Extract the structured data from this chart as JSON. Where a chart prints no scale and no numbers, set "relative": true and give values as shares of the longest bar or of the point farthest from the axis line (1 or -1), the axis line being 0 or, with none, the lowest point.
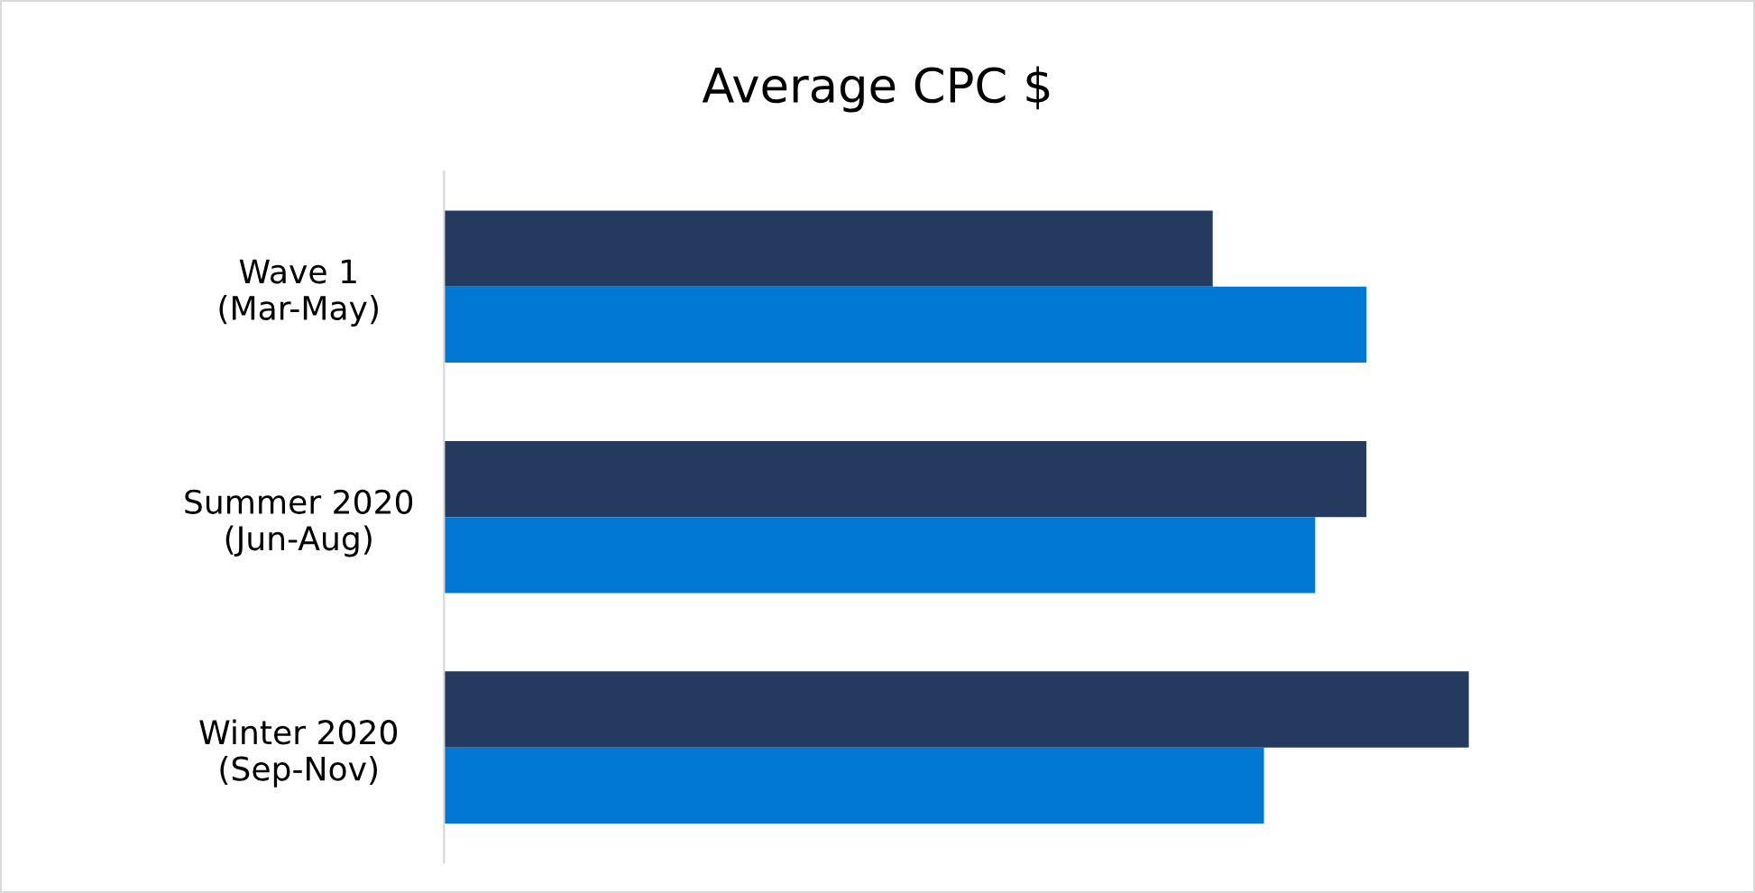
{
  "chart_data": {
    "type": "bar",
    "orientation": "horizontal",
    "relative": true,
    "title": "Average CPC $",
    "categories": [
      "Wave 1\n(Mar-May)",
      "Summer 2020\n(Jun-Aug)",
      "Winter 2020\n(Sep-Nov)"
    ],
    "series": [
      {
        "color": "#243a5e",
        "values": [
          0.75,
          0.9,
          1.0
        ]
      },
      {
        "color": "#0078d4",
        "values": [
          0.9,
          0.85,
          0.8
        ]
      }
    ],
    "grid": false
  }
}
